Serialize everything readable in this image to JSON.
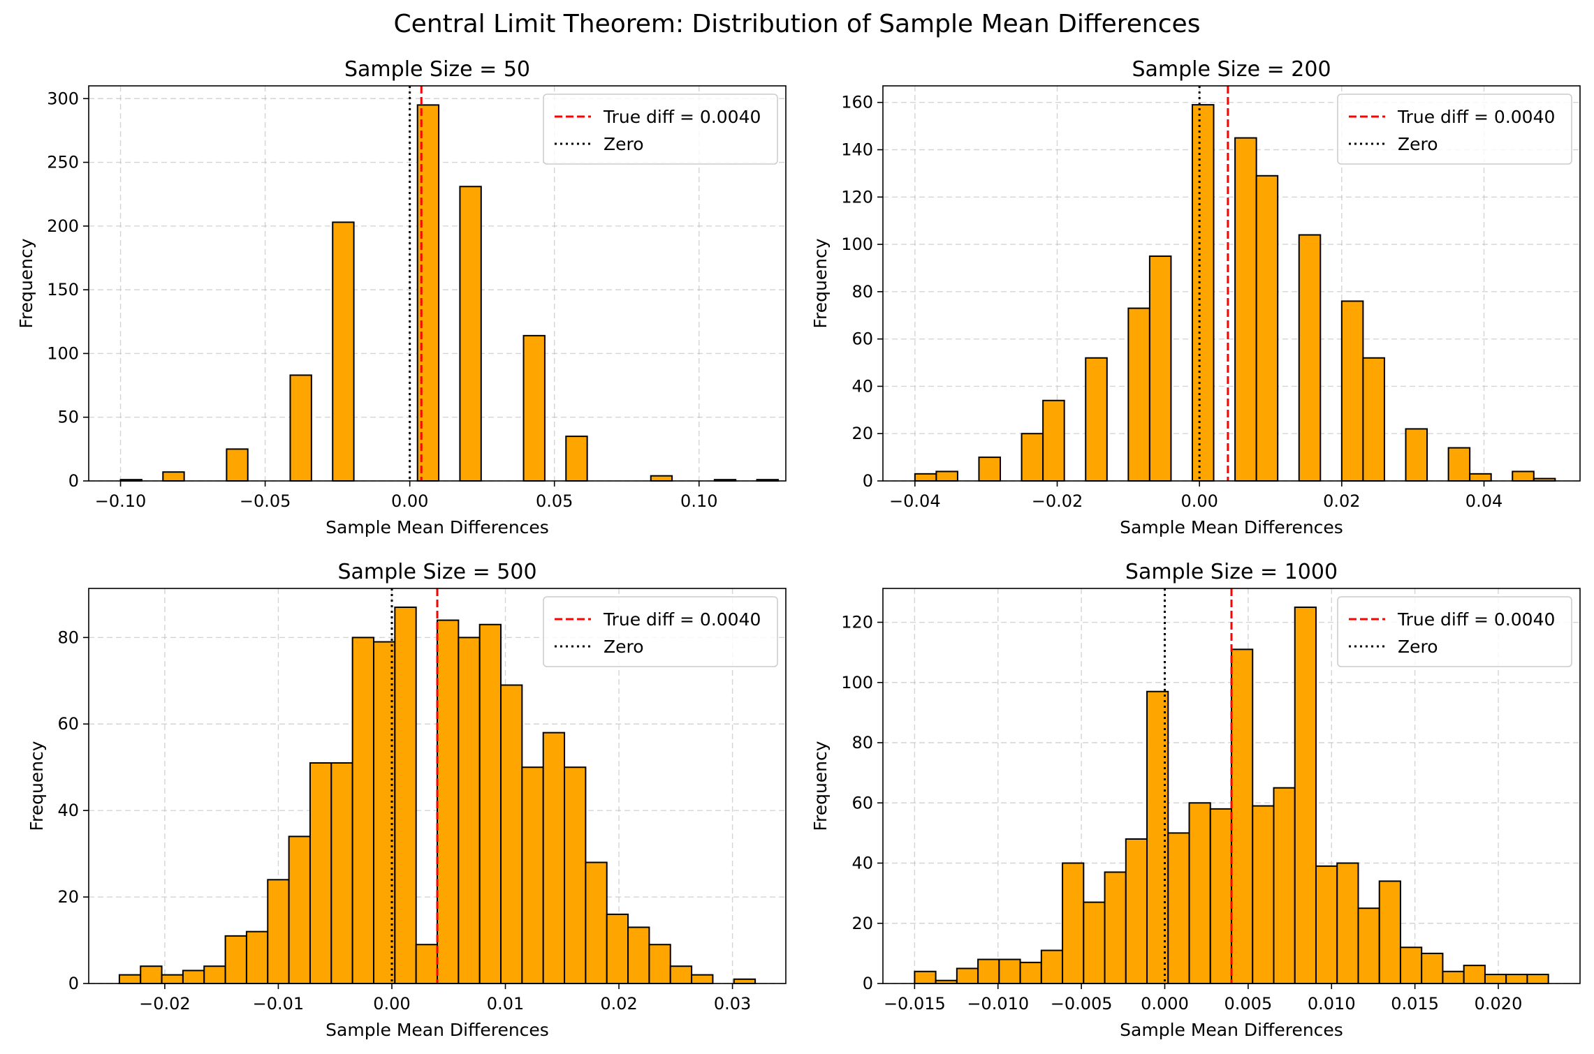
{
  "figure": {
    "title": "Central Limit Theorem: Distribution of Sample Mean Differences"
  },
  "colors": {
    "bar_fill": "#FFA500",
    "bar_edge": "#000000",
    "true_diff_line": "#FF0000",
    "zero_line": "#000000",
    "grid": "#b0b0b0"
  },
  "chart_data": [
    {
      "type": "bar",
      "title": "Sample Size = 50",
      "xlabel": "Sample Mean Differences",
      "ylabel": "Frequency",
      "xlim": [
        -0.111,
        0.13
      ],
      "ylim": [
        0,
        310
      ],
      "xticks": [
        -0.1,
        -0.05,
        0.0,
        0.05,
        0.1
      ],
      "xtick_labels": [
        "−0.10",
        "−0.05",
        "0.00",
        "0.05",
        "0.10"
      ],
      "yticks": [
        0,
        50,
        100,
        150,
        200,
        250,
        300
      ],
      "ytick_labels": [
        "0",
        "50",
        "100",
        "150",
        "200",
        "250",
        "300"
      ],
      "bin_start": -0.1,
      "bin_width": 0.0073333,
      "counts": [
        1,
        0,
        7,
        0,
        0,
        25,
        0,
        0,
        83,
        0,
        203,
        0,
        0,
        0,
        295,
        0,
        231,
        0,
        0,
        114,
        0,
        35,
        0,
        0,
        0,
        4,
        0,
        0,
        1,
        0,
        1
      ],
      "lines": [
        {
          "label": "True diff = 0.0040",
          "x": 0.004,
          "style": "dashed",
          "color": "#FF0000"
        },
        {
          "label": "Zero",
          "x": 0.0,
          "style": "dotted",
          "color": "#000000"
        }
      ],
      "legend": "top-right",
      "grid": true
    },
    {
      "type": "bar",
      "title": "Sample Size = 200",
      "xlabel": "Sample Mean Differences",
      "ylabel": "Frequency",
      "xlim": [
        -0.0445,
        0.0535
      ],
      "ylim": [
        0,
        167
      ],
      "xticks": [
        -0.04,
        -0.02,
        0.0,
        0.02,
        0.04
      ],
      "xtick_labels": [
        "−0.04",
        "−0.02",
        "0.00",
        "0.02",
        "0.04"
      ],
      "yticks": [
        0,
        20,
        40,
        60,
        80,
        100,
        120,
        140,
        160
      ],
      "ytick_labels": [
        "0",
        "20",
        "40",
        "60",
        "80",
        "100",
        "120",
        "140",
        "160"
      ],
      "bin_start": -0.04,
      "bin_width": 0.003,
      "counts": [
        3,
        4,
        0,
        10,
        0,
        20,
        34,
        0,
        52,
        0,
        73,
        95,
        0,
        159,
        0,
        145,
        129,
        0,
        104,
        0,
        76,
        52,
        0,
        22,
        0,
        14,
        3,
        0,
        4,
        1
      ],
      "lines": [
        {
          "label": "True diff = 0.0040",
          "x": 0.004,
          "style": "dashed",
          "color": "#FF0000"
        },
        {
          "label": "Zero",
          "x": 0.0,
          "style": "dotted",
          "color": "#000000"
        }
      ],
      "legend": "top-right",
      "grid": true
    },
    {
      "type": "bar",
      "title": "Sample Size = 500",
      "xlabel": "Sample Mean Differences",
      "ylabel": "Frequency",
      "xlim": [
        -0.0267,
        0.0347
      ],
      "ylim": [
        0,
        91.35
      ],
      "xticks": [
        -0.02,
        -0.01,
        0.0,
        0.01,
        0.02,
        0.03
      ],
      "xtick_labels": [
        "−0.02",
        "−0.01",
        "0.00",
        "0.01",
        "0.02",
        "0.03"
      ],
      "yticks": [
        0,
        20,
        40,
        60,
        80
      ],
      "ytick_labels": [
        "0",
        "20",
        "40",
        "60",
        "80"
      ],
      "bin_start": -0.024,
      "bin_width": 0.0018667,
      "counts": [
        2,
        4,
        2,
        3,
        4,
        11,
        12,
        24,
        34,
        51,
        51,
        80,
        79,
        87,
        9,
        84,
        80,
        83,
        69,
        50,
        58,
        50,
        28,
        16,
        13,
        9,
        4,
        2,
        0,
        1
      ],
      "lines": [
        {
          "label": "True diff = 0.0040",
          "x": 0.004,
          "style": "dashed",
          "color": "#FF0000"
        },
        {
          "label": "Zero",
          "x": 0.0,
          "style": "dotted",
          "color": "#000000"
        }
      ],
      "legend": "top-right",
      "grid": true
    },
    {
      "type": "bar",
      "title": "Sample Size = 1000",
      "xlabel": "Sample Mean Differences",
      "ylabel": "Frequency",
      "xlim": [
        -0.0169,
        0.0249
      ],
      "ylim": [
        0,
        131.25
      ],
      "xticks": [
        -0.015,
        -0.01,
        -0.005,
        0.0,
        0.005,
        0.01,
        0.015,
        0.02
      ],
      "xtick_labels": [
        "−0.015",
        "−0.010",
        "−0.005",
        "0.000",
        "0.005",
        "0.010",
        "0.015",
        "0.020"
      ],
      "yticks": [
        0,
        20,
        40,
        60,
        80,
        100,
        120
      ],
      "ytick_labels": [
        "0",
        "20",
        "40",
        "60",
        "80",
        "100",
        "120"
      ],
      "bin_start": -0.015,
      "bin_width": 0.0012667,
      "counts": [
        4,
        1,
        5,
        8,
        8,
        7,
        11,
        40,
        27,
        37,
        48,
        97,
        50,
        60,
        58,
        111,
        59,
        65,
        125,
        39,
        40,
        25,
        34,
        12,
        10,
        4,
        6,
        3,
        3,
        3
      ],
      "lines": [
        {
          "label": "True diff = 0.0040",
          "x": 0.004,
          "style": "dashed",
          "color": "#FF0000"
        },
        {
          "label": "Zero",
          "x": 0.0,
          "style": "dotted",
          "color": "#000000"
        }
      ],
      "legend": "top-right",
      "grid": true
    }
  ]
}
